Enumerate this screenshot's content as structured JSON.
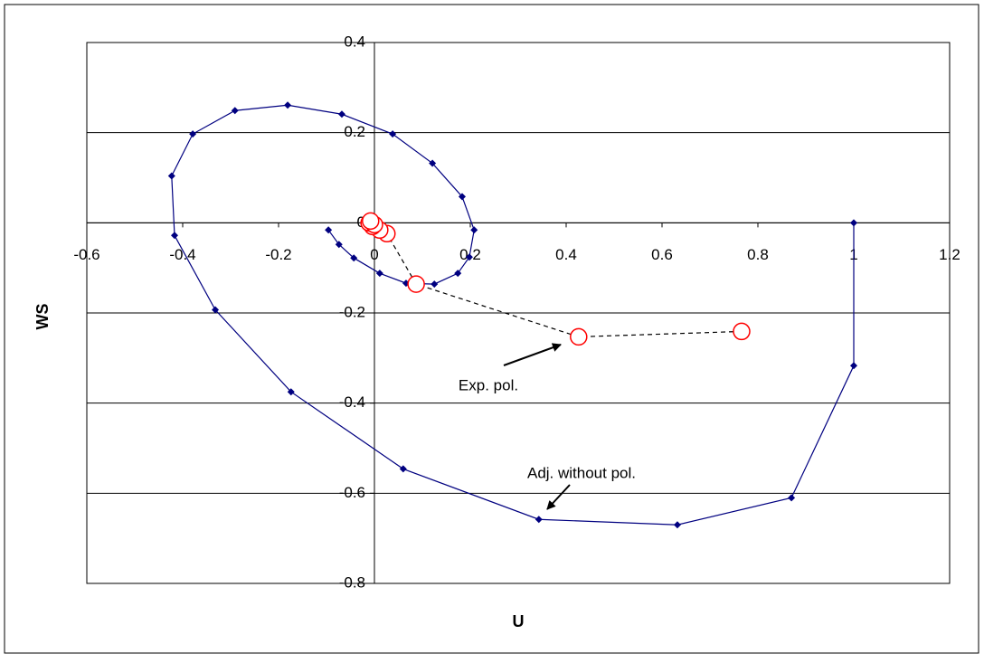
{
  "chart_data": {
    "type": "scatter",
    "x_label": "U",
    "y_label": "WS",
    "xlim": [
      -0.6,
      1.2
    ],
    "ylim": [
      -0.8,
      0.4
    ],
    "xticks": [
      -0.6,
      -0.4,
      -0.2,
      0,
      0.2,
      0.4,
      0.6,
      0.8,
      1,
      1.2
    ],
    "yticks": [
      -0.8,
      -0.6,
      -0.4,
      -0.2,
      0,
      0.2,
      0.4
    ],
    "grid": true,
    "annotations": [
      "Exp. pol.",
      "Adj. without pol."
    ],
    "series": [
      {
        "name": "Adj. without pol.",
        "color": "#000080",
        "line": "solid",
        "marker": "diamond",
        "x": [
          1,
          1,
          0.87,
          0.632,
          0.343,
          0.06,
          -0.174,
          -0.332,
          -0.417,
          -0.423,
          -0.379,
          -0.291,
          -0.181,
          -0.068,
          0.038,
          0.121,
          0.183,
          0.208,
          0.198,
          0.174,
          0.125,
          0.066,
          0.011,
          -0.043,
          -0.074,
          -0.096
        ],
        "values": [
          0,
          -0.317,
          -0.61,
          -0.67,
          -0.658,
          -0.546,
          -0.375,
          -0.193,
          -0.028,
          0.104,
          0.197,
          0.249,
          0.261,
          0.241,
          0.197,
          0.132,
          0.058,
          -0.016,
          -0.076,
          -0.112,
          -0.136,
          -0.134,
          -0.112,
          -0.078,
          -0.048,
          -0.016
        ]
      },
      {
        "name": "Exp. pol.",
        "color": "#ff0000",
        "line": "dashed",
        "marker": "circle",
        "x": [
          0.766,
          0.426,
          0.087,
          0.026,
          0.011,
          -0.004,
          -0.011,
          0,
          -0.008
        ],
        "values": [
          -0.241,
          -0.253,
          -0.136,
          -0.024,
          -0.016,
          -0.008,
          0,
          -0.004,
          0.004
        ]
      }
    ]
  }
}
